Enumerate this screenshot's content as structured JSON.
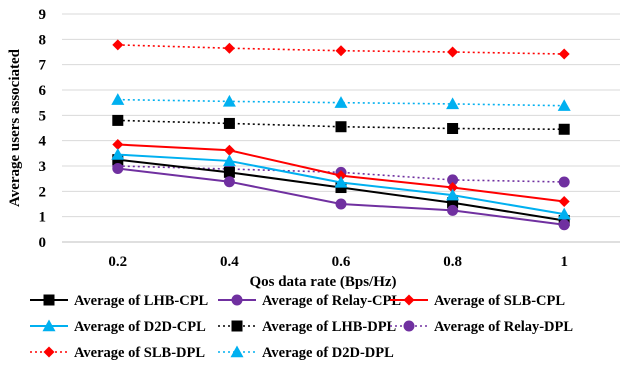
{
  "chart_data": {
    "type": "line",
    "xlabel": "Qos data rate (Bps/Hz)",
    "ylabel": "Average users associated",
    "x": [
      0.2,
      0.4,
      0.6,
      0.8,
      1
    ],
    "x_tick_labels": [
      "0.2",
      "0.4",
      "0.6",
      "0.8",
      "1"
    ],
    "ylim": [
      0,
      9
    ],
    "y_ticks": [
      0,
      1,
      2,
      3,
      4,
      5,
      6,
      7,
      8,
      9
    ],
    "grid": "horizontal",
    "legend_position": "bottom",
    "series": [
      {
        "name": "Average of LHB-CPL",
        "values": [
          3.25,
          2.75,
          2.15,
          1.55,
          0.85
        ],
        "color": "#000000",
        "dash": "solid",
        "marker": "square"
      },
      {
        "name": "Average of  Relay-CPL",
        "values": [
          2.9,
          2.38,
          1.5,
          1.25,
          0.68
        ],
        "color": "#7030a0",
        "dash": "solid",
        "marker": "circle"
      },
      {
        "name": "Average of SLB-CPL",
        "values": [
          3.85,
          3.62,
          2.62,
          2.15,
          1.6
        ],
        "color": "#ff0000",
        "dash": "solid",
        "marker": "diamond"
      },
      {
        "name": "Average of D2D-CPL",
        "values": [
          3.45,
          3.2,
          2.35,
          1.85,
          1.1
        ],
        "color": "#00b0f0",
        "dash": "solid",
        "marker": "triangle"
      },
      {
        "name": "Average of LHB-DPL",
        "values": [
          4.8,
          4.68,
          4.55,
          4.48,
          4.45
        ],
        "color": "#000000",
        "dash": "dotted",
        "marker": "square"
      },
      {
        "name": "Average of Relay-DPL",
        "values": [
          3.0,
          2.88,
          2.75,
          2.45,
          2.37
        ],
        "color": "#7030a0",
        "dash": "dotted",
        "marker": "circle"
      },
      {
        "name": "Average of SLB-DPL",
        "values": [
          7.78,
          7.65,
          7.55,
          7.5,
          7.42
        ],
        "color": "#ff0000",
        "dash": "dotted",
        "marker": "diamond"
      },
      {
        "name": "Average of D2D-DPL",
        "values": [
          5.62,
          5.55,
          5.5,
          5.45,
          5.38
        ],
        "color": "#00b0f0",
        "dash": "dotted",
        "marker": "triangle"
      }
    ]
  }
}
